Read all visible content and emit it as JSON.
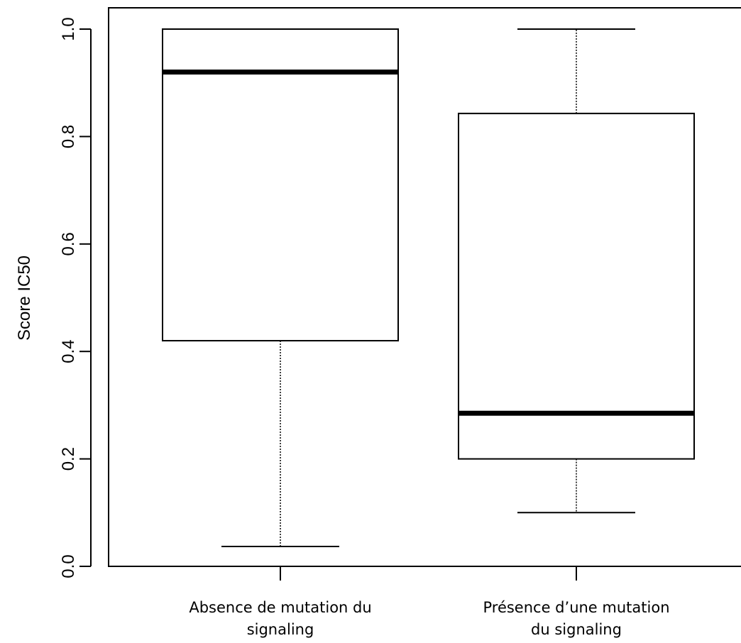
{
  "chart_data": {
    "type": "boxplot",
    "title": "",
    "xlabel": "",
    "ylabel": "Score IC50",
    "ylim": [
      0.0,
      1.0
    ],
    "yticks": [
      "0.0",
      "0.2",
      "0.4",
      "0.6",
      "0.8",
      "1.0"
    ],
    "ytick_values": [
      0.0,
      0.2,
      0.4,
      0.6,
      0.8,
      1.0
    ],
    "grid": false,
    "categories": [
      [
        "Absence de mutation du",
        "signaling"
      ],
      [
        "Présence d’une mutation",
        "du signaling"
      ]
    ],
    "boxes": [
      {
        "whisker_low": 0.037,
        "q1": 0.42,
        "median": 0.92,
        "q3": 1.0,
        "whisker_high": 1.0
      },
      {
        "whisker_low": 0.1,
        "q1": 0.2,
        "median": 0.285,
        "q3": 0.843,
        "whisker_high": 1.0
      }
    ]
  }
}
